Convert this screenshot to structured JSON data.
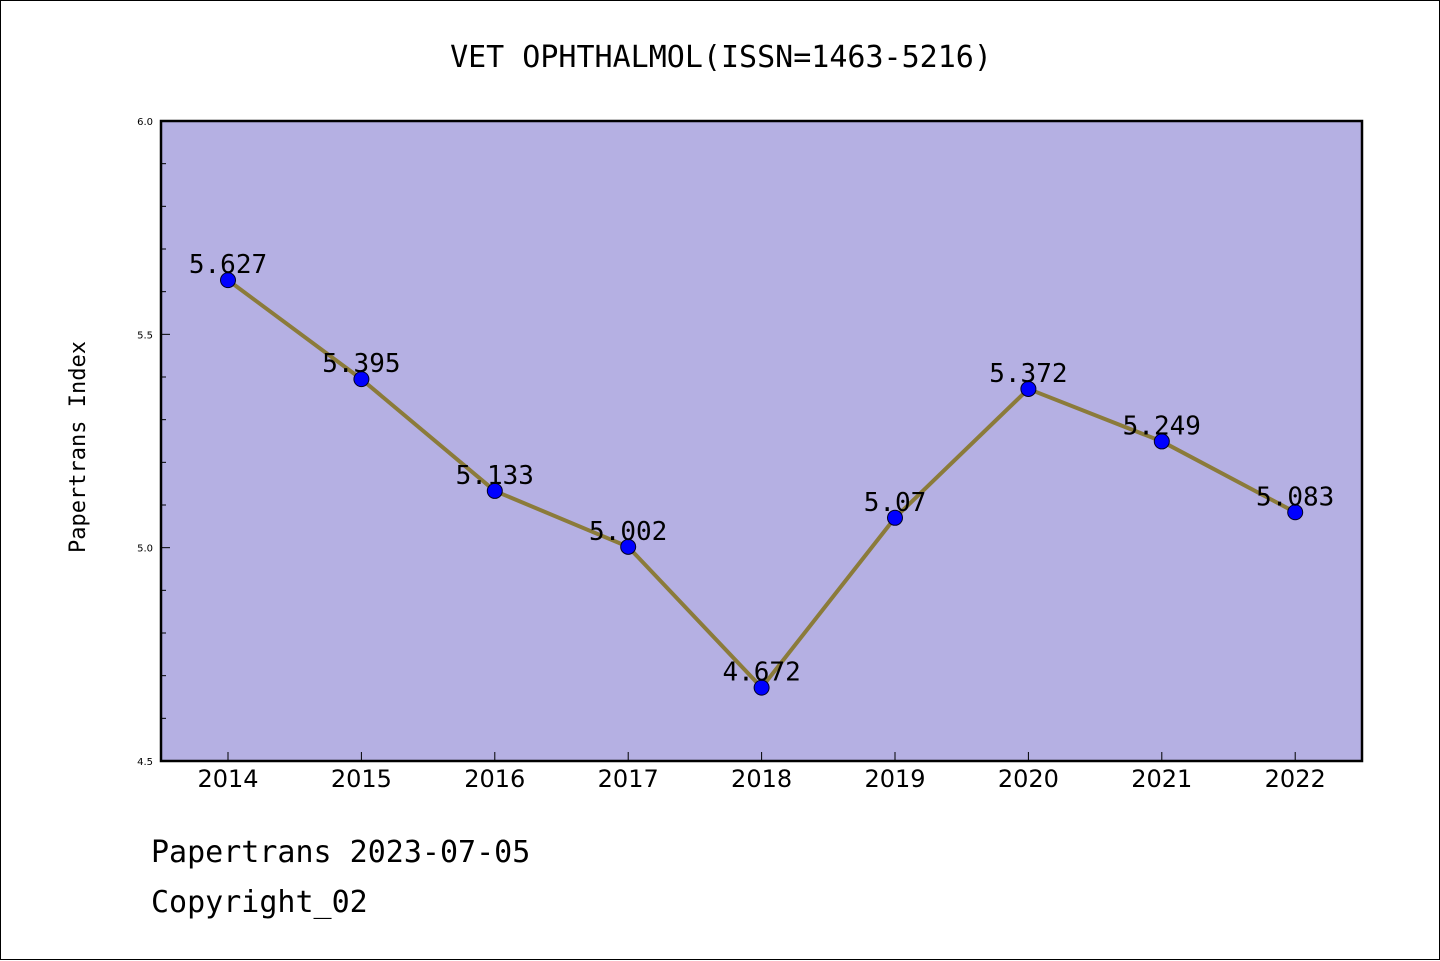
{
  "chart_data": {
    "type": "line",
    "title": "VET OPHTHALMOL(ISSN=1463-5216)",
    "xlabel": "",
    "ylabel": "Papertrans Index",
    "categories": [
      "2014",
      "2015",
      "2016",
      "2017",
      "2018",
      "2019",
      "2020",
      "2021",
      "2022"
    ],
    "values": [
      5.627,
      5.395,
      5.133,
      5.002,
      4.672,
      5.07,
      5.372,
      5.249,
      5.083
    ],
    "data_labels": [
      "5.627",
      "5.395",
      "5.133",
      "5.002",
      "4.672",
      "5.07",
      "5.372",
      "5.249",
      "5.083"
    ],
    "ylim": [
      4.5,
      6.0
    ],
    "yticks": [
      "4.5",
      "5.0",
      "5.5",
      "6.0"
    ],
    "grid": false,
    "colors": {
      "plot_background": "#b5b0e3",
      "line": "#8b7b3a",
      "marker": "#0000ff"
    }
  },
  "footer": {
    "line1": "Papertrans 2023-07-05",
    "line2": "Copyright_02"
  }
}
